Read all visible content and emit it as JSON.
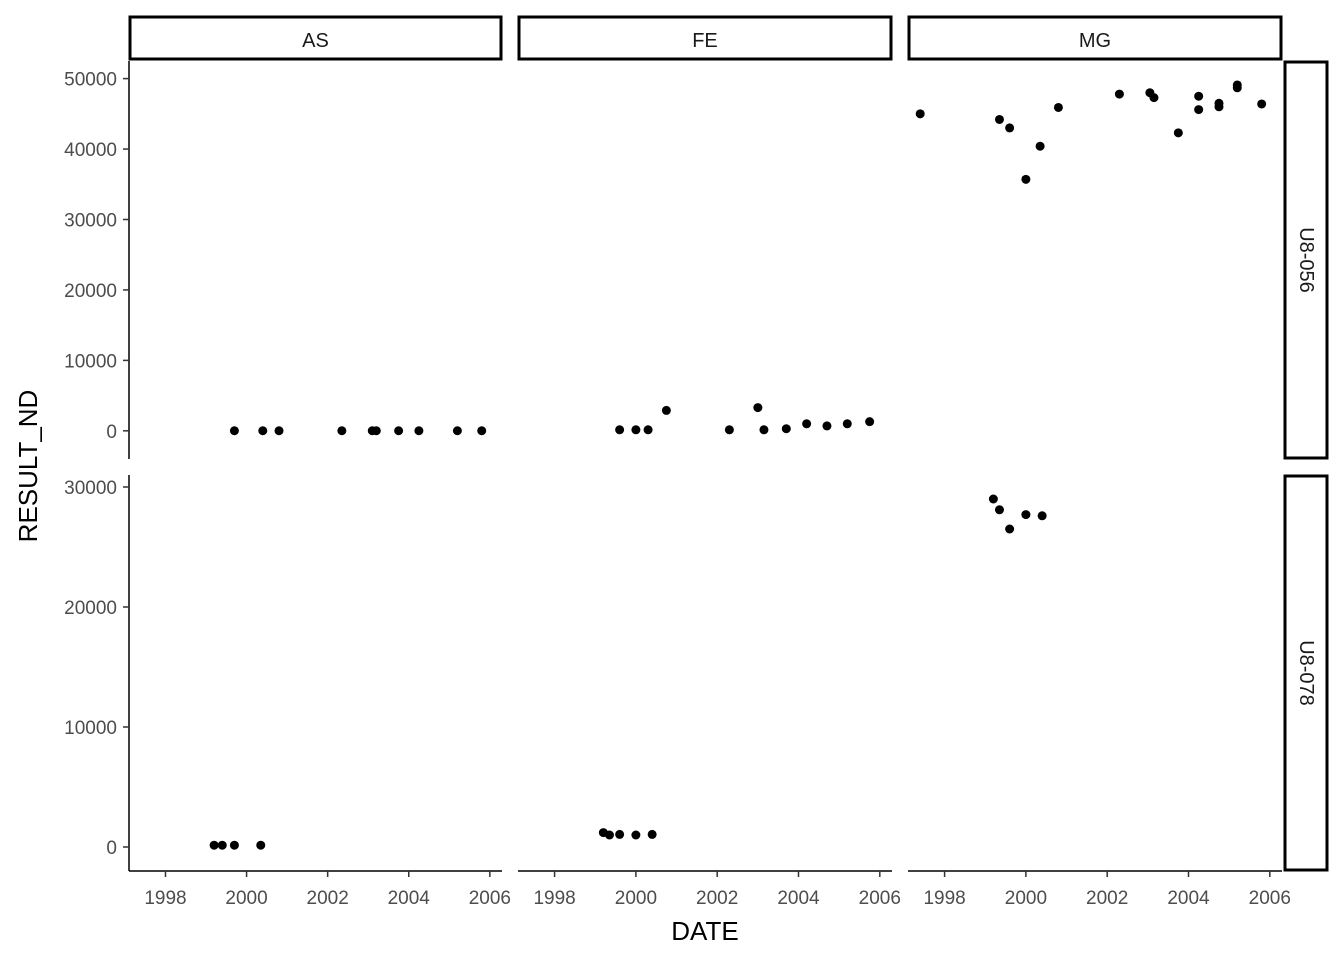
{
  "chart_data": {
    "type": "scatter",
    "title": "",
    "xlabel": "DATE",
    "ylabel": "RESULT_ND",
    "x_ticks": [
      "1998",
      "2000",
      "2002",
      "2004",
      "2006"
    ],
    "xlim": [
      1997.1,
      2006.3
    ],
    "grid": false,
    "legend": "none",
    "point_color": "#000000",
    "facet_columns": [
      "AS",
      "FE",
      "MG"
    ],
    "facet_rows": [
      {
        "label": "U8-056",
        "ylim": [
          -4000,
          52500
        ],
        "y_ticks": [
          0,
          10000,
          20000,
          30000,
          40000,
          50000
        ]
      },
      {
        "label": "U8-078",
        "ylim": [
          -2000,
          31000
        ],
        "y_ticks": [
          0,
          10000,
          20000,
          30000
        ]
      }
    ],
    "panels": [
      {
        "column": "AS",
        "row": "U8-056",
        "points": [
          [
            1999.7,
            10
          ],
          [
            2000.4,
            10
          ],
          [
            2000.8,
            10
          ],
          [
            2002.35,
            10
          ],
          [
            2003.1,
            10
          ],
          [
            2003.2,
            10
          ],
          [
            2003.75,
            10
          ],
          [
            2004.25,
            10
          ],
          [
            2005.2,
            10
          ],
          [
            2005.8,
            10
          ]
        ]
      },
      {
        "column": "FE",
        "row": "U8-056",
        "points": [
          [
            1999.6,
            150
          ],
          [
            2000.0,
            150
          ],
          [
            2000.3,
            150
          ],
          [
            2000.75,
            2900
          ],
          [
            2002.3,
            150
          ],
          [
            2003.0,
            3300
          ],
          [
            2003.15,
            150
          ],
          [
            2003.7,
            300
          ],
          [
            2004.2,
            1000
          ],
          [
            2004.7,
            700
          ],
          [
            2005.2,
            1000
          ],
          [
            2005.75,
            1300
          ]
        ]
      },
      {
        "column": "MG",
        "row": "U8-056",
        "points": [
          [
            1997.4,
            45000
          ],
          [
            1999.35,
            44200
          ],
          [
            1999.6,
            43000
          ],
          [
            2000.0,
            35700
          ],
          [
            2000.35,
            40400
          ],
          [
            2000.8,
            45900
          ],
          [
            2002.3,
            47800
          ],
          [
            2003.05,
            48000
          ],
          [
            2003.15,
            47300
          ],
          [
            2003.75,
            42300
          ],
          [
            2004.25,
            47500
          ],
          [
            2004.25,
            45600
          ],
          [
            2004.75,
            46500
          ],
          [
            2004.75,
            46000
          ],
          [
            2005.2,
            48700
          ],
          [
            2005.2,
            49100
          ],
          [
            2005.8,
            46400
          ]
        ]
      },
      {
        "column": "AS",
        "row": "U8-078",
        "points": [
          [
            1999.2,
            150
          ],
          [
            1999.4,
            150
          ],
          [
            1999.7,
            150
          ],
          [
            2000.35,
            150
          ]
        ]
      },
      {
        "column": "FE",
        "row": "U8-078",
        "points": [
          [
            1999.2,
            1200
          ],
          [
            1999.35,
            1000
          ],
          [
            1999.6,
            1050
          ],
          [
            2000.0,
            1000
          ],
          [
            2000.4,
            1050
          ]
        ]
      },
      {
        "column": "MG",
        "row": "U8-078",
        "points": [
          [
            1999.2,
            29000
          ],
          [
            1999.35,
            28100
          ],
          [
            1999.6,
            26500
          ],
          [
            2000.0,
            27700
          ],
          [
            2000.4,
            27600
          ]
        ]
      }
    ]
  }
}
